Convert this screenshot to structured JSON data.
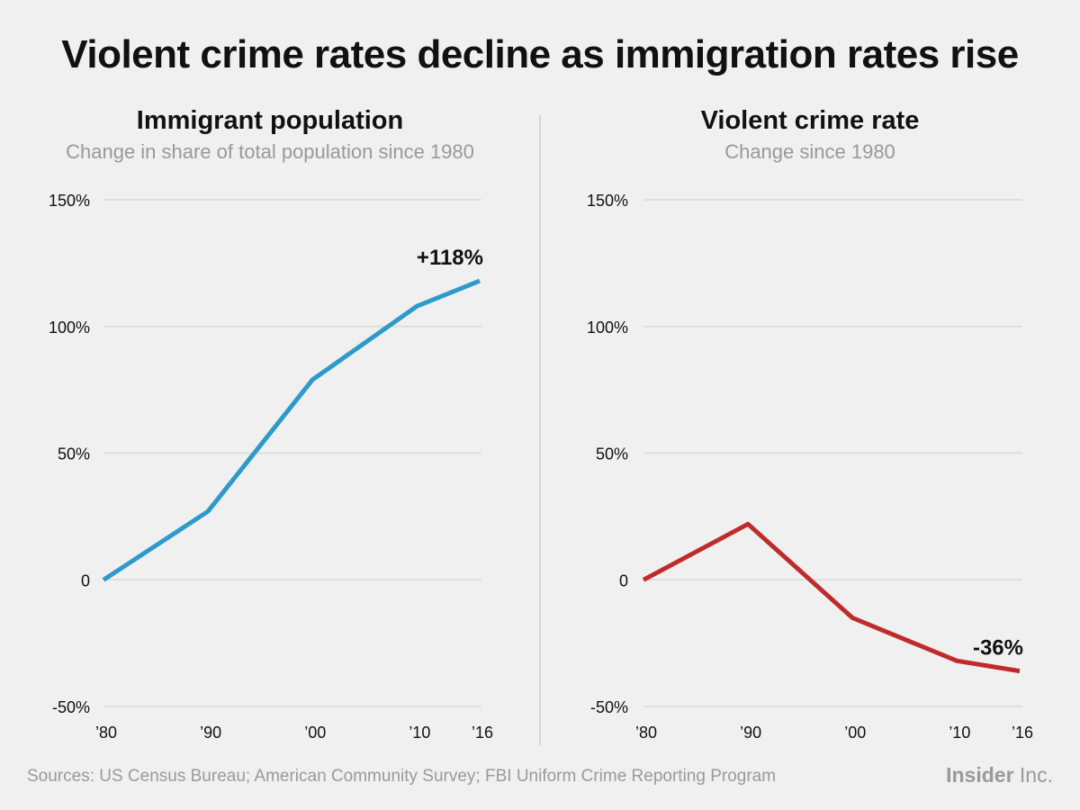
{
  "title": "Violent crime rates decline as immigration rates rise",
  "source": "Sources: US Census Bureau; American Community Survey; FBI Uniform Crime Reporting Program",
  "logo": {
    "bold": "Insider",
    "light": " Inc."
  },
  "colors": {
    "grid": "#d9d9d9",
    "axis_text": "#111111"
  },
  "chart_data": [
    {
      "type": "line",
      "title": "Immigrant population",
      "subtitle": "Change in share of total population since 1980",
      "x": [
        1980,
        1990,
        2000,
        2010,
        2016
      ],
      "x_tick_labels": [
        "’80",
        "’90",
        "’00",
        "’10",
        "’16"
      ],
      "y_ticks": [
        -50,
        0,
        50,
        100,
        150
      ],
      "y_tick_labels": [
        "-50%",
        "0",
        "50%",
        "100%",
        "150%"
      ],
      "ylim": [
        -50,
        150
      ],
      "grid": true,
      "series": [
        {
          "values": [
            0,
            27,
            79,
            108,
            118
          ],
          "color": "#2e9ac9"
        }
      ],
      "annotation": {
        "text": "+118%",
        "x": 2016,
        "y": 118
      }
    },
    {
      "type": "line",
      "title": "Violent crime rate",
      "subtitle": "Change since 1980",
      "x": [
        1980,
        1990,
        2000,
        2010,
        2016
      ],
      "x_tick_labels": [
        "’80",
        "’90",
        "’00",
        "’10",
        "’16"
      ],
      "y_ticks": [
        -50,
        0,
        50,
        100,
        150
      ],
      "y_tick_labels": [
        "-50%",
        "0",
        "50%",
        "100%",
        "150%"
      ],
      "ylim": [
        -50,
        150
      ],
      "grid": true,
      "series": [
        {
          "values": [
            0,
            22,
            -15,
            -32,
            -36
          ],
          "color": "#bf2b2b"
        }
      ],
      "annotation": {
        "text": "-36%",
        "x": 2016,
        "y": -36
      }
    }
  ]
}
